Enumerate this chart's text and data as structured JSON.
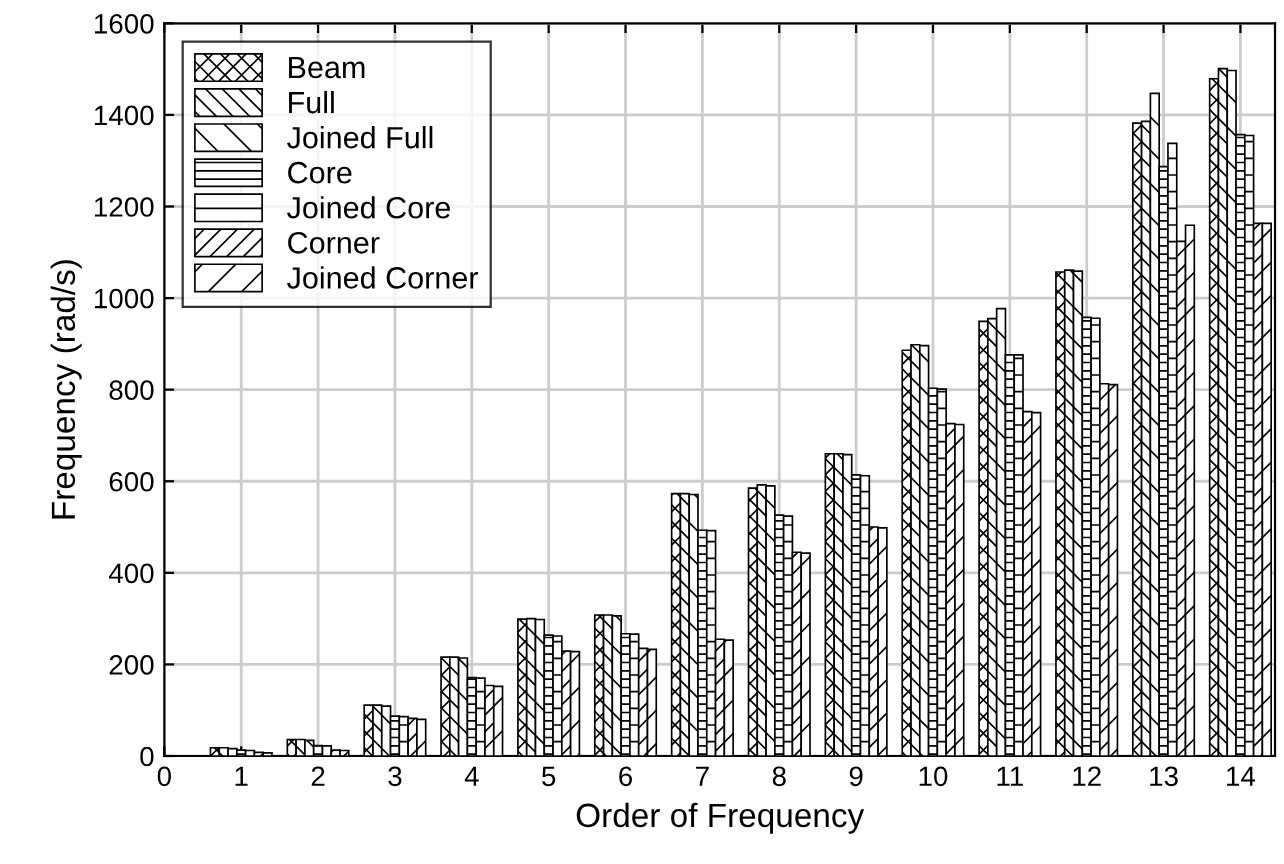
{
  "chart_data": {
    "type": "bar",
    "xlabel": "Order of Frequency",
    "ylabel": "Frequency (rad/s)",
    "x": [
      1,
      2,
      3,
      4,
      5,
      6,
      7,
      8,
      9,
      10,
      11,
      12,
      13,
      14
    ],
    "xlim": [
      0,
      14.45
    ],
    "xticks": [
      0,
      1,
      2,
      3,
      4,
      5,
      6,
      7,
      8,
      9,
      10,
      11,
      12,
      13,
      14
    ],
    "ylim": [
      0,
      1600
    ],
    "yticks": [
      0,
      200,
      400,
      600,
      800,
      1000,
      1200,
      1400,
      1600
    ],
    "grid": true,
    "legend": "top left",
    "series": [
      {
        "name": "Beam",
        "values": [
          18,
          36,
          111,
          216,
          299,
          308,
          573,
          585,
          660,
          886,
          949,
          1057,
          1382,
          1479
        ]
      },
      {
        "name": "Full",
        "values": [
          18,
          36,
          111,
          216,
          300,
          308,
          573,
          592,
          660,
          898,
          955,
          1061,
          1386,
          1501
        ]
      },
      {
        "name": "Joined Full",
        "values": [
          16,
          34,
          109,
          214,
          298,
          306,
          571,
          590,
          658,
          896,
          977,
          1059,
          1447,
          1497
        ]
      },
      {
        "name": "Core",
        "values": [
          13,
          23,
          87,
          171,
          264,
          267,
          493,
          526,
          614,
          803,
          876,
          958,
          1287,
          1357
        ]
      },
      {
        "name": "Joined Core",
        "values": [
          12,
          22,
          86,
          170,
          262,
          266,
          492,
          524,
          612,
          801,
          876,
          956,
          1338,
          1355
        ]
      },
      {
        "name": "Corner",
        "values": [
          8,
          13,
          82,
          154,
          229,
          235,
          255,
          445,
          500,
          726,
          752,
          813,
          1124,
          1163
        ]
      },
      {
        "name": "Joined Corner",
        "values": [
          7,
          12,
          80,
          152,
          228,
          233,
          253,
          443,
          498,
          724,
          750,
          811,
          1159,
          1163
        ]
      }
    ]
  }
}
